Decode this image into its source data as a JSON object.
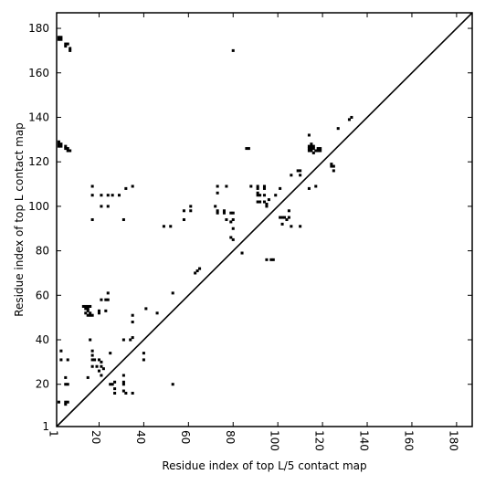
{
  "chart_data": {
    "type": "scatter",
    "title": "",
    "xlabel": "Residue index of top L/5 contact map",
    "ylabel": "Residue index of top L contact map",
    "xlim": [
      1,
      187
    ],
    "ylim": [
      1,
      187
    ],
    "xticks": [
      1,
      20,
      40,
      60,
      80,
      100,
      120,
      140,
      160,
      180
    ],
    "yticks": [
      1,
      20,
      40,
      60,
      80,
      100,
      120,
      140,
      160,
      180
    ],
    "grid": false,
    "diagonal": true,
    "marker": "square",
    "series": [
      {
        "region": "upper-left",
        "points": [
          [
            2,
            176
          ],
          [
            2,
            175
          ],
          [
            3,
            176
          ],
          [
            3,
            175
          ],
          [
            5,
            173
          ],
          [
            5,
            172
          ],
          [
            6,
            173
          ],
          [
            7,
            171
          ],
          [
            7,
            170
          ],
          [
            80,
            170
          ],
          [
            2,
            129
          ],
          [
            2,
            128
          ],
          [
            2,
            127
          ],
          [
            3,
            128
          ],
          [
            3,
            127
          ],
          [
            5,
            127
          ],
          [
            5,
            126
          ],
          [
            6,
            126
          ],
          [
            6,
            125
          ],
          [
            7,
            125
          ],
          [
            17,
            109
          ],
          [
            17,
            105
          ],
          [
            21,
            105
          ],
          [
            24,
            105
          ],
          [
            26,
            105
          ],
          [
            29,
            105
          ],
          [
            32,
            108
          ],
          [
            35,
            109
          ],
          [
            21,
            100
          ],
          [
            24,
            100
          ],
          [
            17,
            94
          ],
          [
            31,
            94
          ],
          [
            49,
            91
          ],
          [
            52,
            91
          ],
          [
            58,
            94
          ],
          [
            58,
            98
          ],
          [
            61,
            100
          ],
          [
            61,
            98
          ],
          [
            72,
            100
          ],
          [
            73,
            98
          ],
          [
            73,
            97
          ],
          [
            73,
            109
          ],
          [
            73,
            106
          ],
          [
            76,
            98
          ],
          [
            76,
            97
          ],
          [
            77,
            109
          ],
          [
            77,
            94
          ],
          [
            79,
            97
          ],
          [
            80,
            97
          ],
          [
            79,
            93
          ],
          [
            80,
            94
          ],
          [
            80,
            90
          ],
          [
            79,
            86
          ],
          [
            80,
            85
          ],
          [
            86,
            126
          ],
          [
            87,
            126
          ],
          [
            88,
            109
          ],
          [
            91,
            109
          ],
          [
            91,
            108
          ],
          [
            91,
            106
          ],
          [
            91,
            105
          ],
          [
            92,
            105
          ],
          [
            91,
            102
          ],
          [
            92,
            102
          ],
          [
            94,
            109
          ],
          [
            94,
            108
          ],
          [
            94,
            105
          ],
          [
            94,
            102
          ],
          [
            95,
            101
          ],
          [
            96,
            103
          ],
          [
            95,
            100
          ],
          [
            99,
            105
          ],
          [
            101,
            108
          ],
          [
            101,
            95
          ],
          [
            102,
            95
          ],
          [
            103,
            95
          ],
          [
            102,
            92
          ],
          [
            104,
            94
          ],
          [
            105,
            95
          ],
          [
            105,
            98
          ],
          [
            106,
            91
          ],
          [
            106,
            114
          ],
          [
            109,
            116
          ],
          [
            110,
            116
          ],
          [
            110,
            114
          ],
          [
            110,
            91
          ],
          [
            84,
            79
          ],
          [
            95,
            76
          ],
          [
            97,
            76
          ],
          [
            98,
            76
          ],
          [
            65,
            72
          ],
          [
            64,
            71
          ],
          [
            63,
            70
          ],
          [
            114,
            132
          ],
          [
            114,
            127
          ],
          [
            114,
            126
          ],
          [
            114,
            125
          ],
          [
            115,
            128
          ],
          [
            115,
            127
          ],
          [
            115,
            126
          ],
          [
            115,
            125
          ],
          [
            116,
            127
          ],
          [
            116,
            126
          ],
          [
            116,
            124
          ],
          [
            117,
            125
          ],
          [
            118,
            125
          ],
          [
            118,
            126
          ],
          [
            119,
            126
          ],
          [
            119,
            125
          ],
          [
            114,
            108
          ],
          [
            117,
            109
          ],
          [
            124,
            119
          ],
          [
            124,
            118
          ],
          [
            125,
            118
          ],
          [
            125,
            116
          ],
          [
            127,
            135
          ],
          [
            132,
            139
          ],
          [
            133,
            140
          ],
          [
            13,
            55
          ],
          [
            14,
            55
          ],
          [
            14,
            54
          ],
          [
            15,
            55
          ],
          [
            15,
            54
          ],
          [
            15,
            53
          ],
          [
            16,
            52
          ],
          [
            14,
            52
          ],
          [
            15,
            51
          ],
          [
            16,
            51
          ],
          [
            16,
            55
          ],
          [
            17,
            51
          ],
          [
            20,
            53
          ],
          [
            20,
            52
          ],
          [
            21,
            58
          ],
          [
            23,
            58
          ],
          [
            23,
            53
          ],
          [
            24,
            58
          ],
          [
            24,
            61
          ],
          [
            16,
            40
          ],
          [
            17,
            35
          ],
          [
            17,
            33
          ],
          [
            17,
            31
          ],
          [
            18,
            31
          ],
          [
            17,
            28
          ],
          [
            19,
            28
          ],
          [
            20,
            31
          ],
          [
            21,
            30
          ],
          [
            21,
            28
          ],
          [
            20,
            26
          ],
          [
            22,
            27
          ],
          [
            25,
            34
          ],
          [
            21,
            24
          ],
          [
            25,
            20
          ],
          [
            26,
            20
          ],
          [
            27,
            21
          ],
          [
            27,
            18
          ],
          [
            27,
            16
          ],
          [
            31,
            21
          ],
          [
            31,
            20
          ],
          [
            31,
            24
          ],
          [
            31,
            40
          ],
          [
            31,
            17
          ],
          [
            32,
            16
          ],
          [
            35,
            16
          ],
          [
            34,
            40
          ],
          [
            35,
            41
          ],
          [
            35,
            48
          ],
          [
            35,
            51
          ],
          [
            40,
            34
          ],
          [
            40,
            31
          ],
          [
            41,
            54
          ],
          [
            46,
            52
          ],
          [
            53,
            61
          ],
          [
            53,
            20
          ],
          [
            3,
            35
          ],
          [
            3,
            31
          ],
          [
            5,
            23
          ],
          [
            5,
            20
          ],
          [
            6,
            20
          ],
          [
            6,
            31
          ],
          [
            5,
            12
          ],
          [
            6,
            12
          ],
          [
            5,
            11
          ],
          [
            2,
            12
          ],
          [
            15,
            23
          ]
        ]
      }
    ]
  }
}
